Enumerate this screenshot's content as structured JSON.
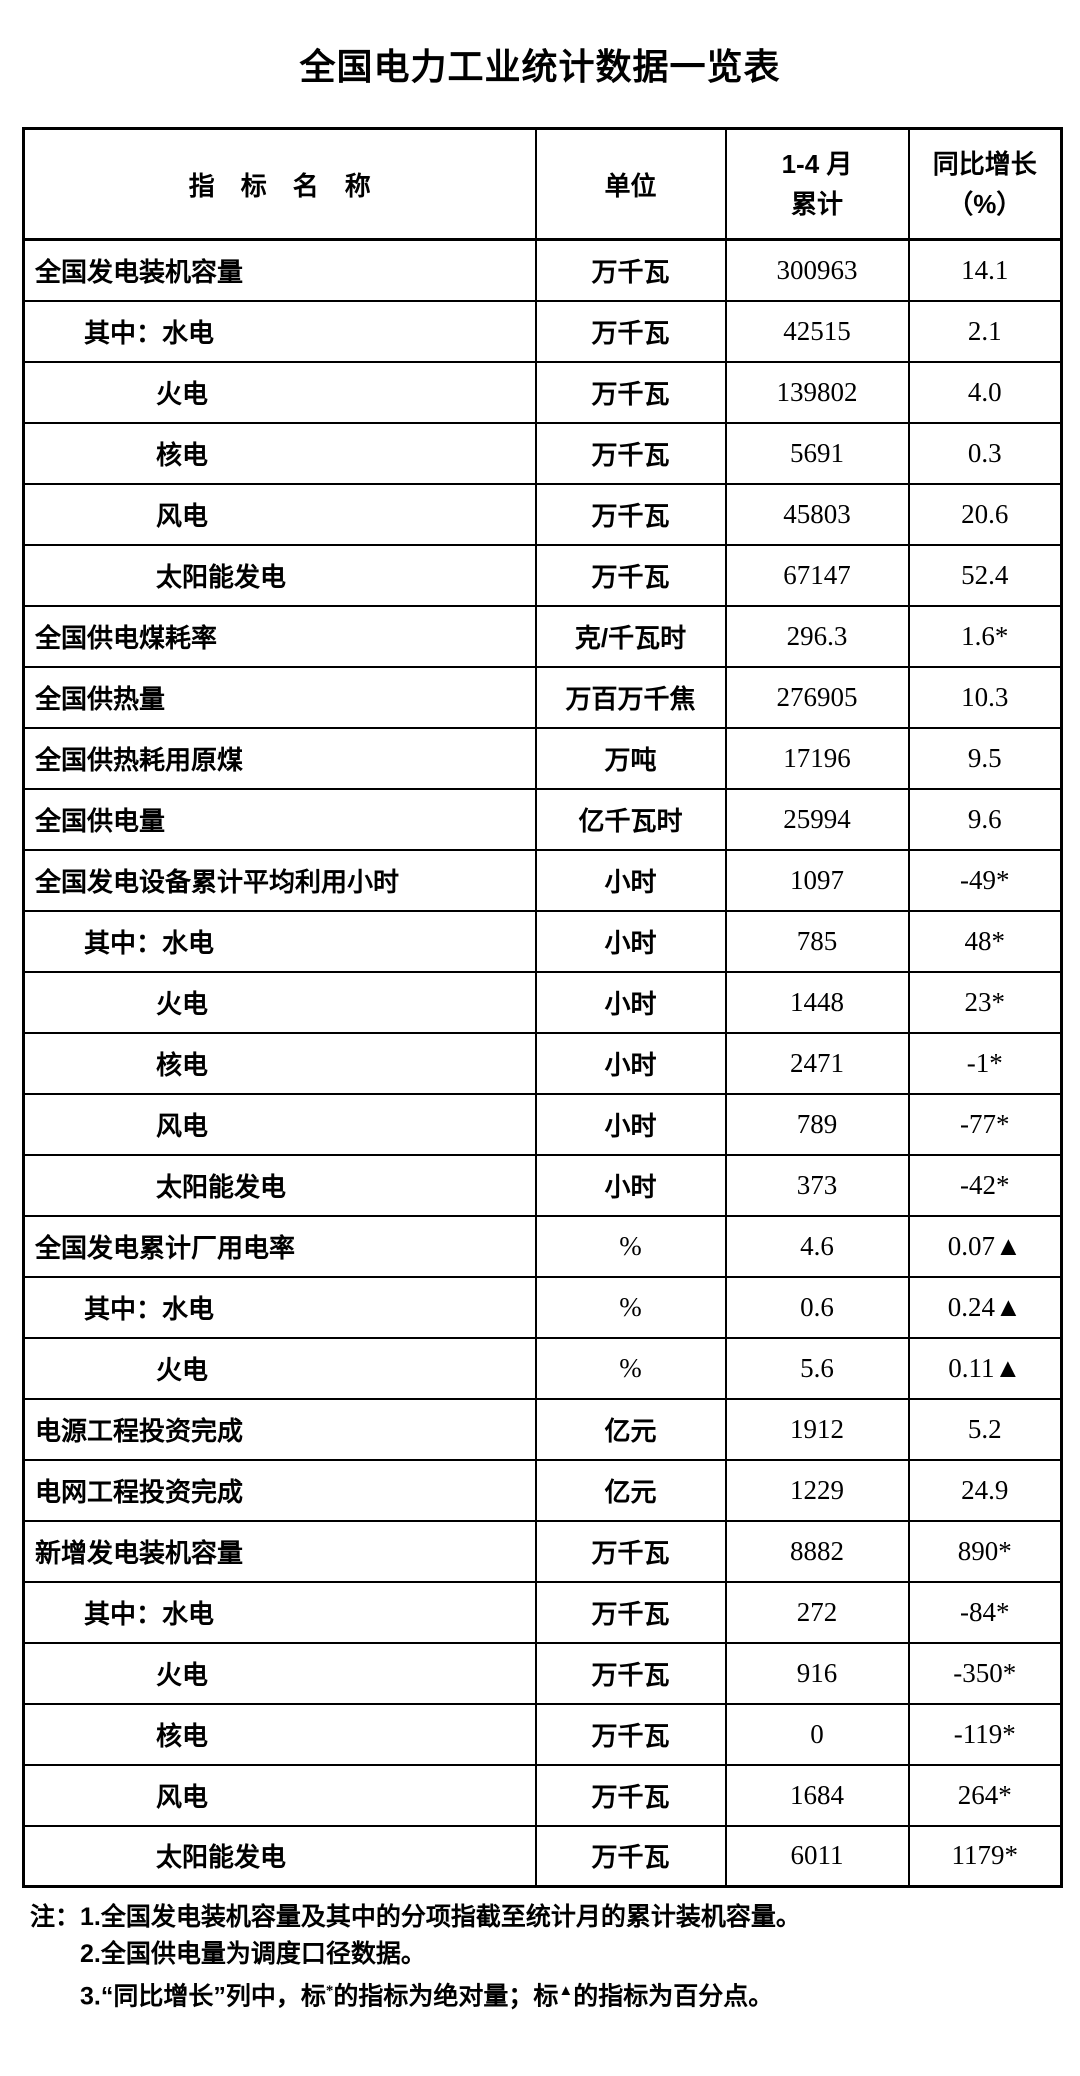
{
  "title": "全国电力工业统计数据一览表",
  "table": {
    "headers": {
      "indicator": "指　标　名　称",
      "unit": "单位",
      "period_line1": "1-4 月",
      "period_line2": "累计",
      "growth_line1": "同比增长",
      "growth_line2": "（%）"
    },
    "rows": [
      {
        "name": "全国发电装机容量",
        "indent": 0,
        "unit": "万千瓦",
        "value": "300963",
        "growth": "14.1"
      },
      {
        "name": "其中：水电",
        "indent": 1,
        "unit": "万千瓦",
        "value": "42515",
        "growth": "2.1"
      },
      {
        "name": "火电",
        "indent": 2,
        "unit": "万千瓦",
        "value": "139802",
        "growth": "4.0"
      },
      {
        "name": "核电",
        "indent": 2,
        "unit": "万千瓦",
        "value": "5691",
        "growth": "0.3"
      },
      {
        "name": "风电",
        "indent": 2,
        "unit": "万千瓦",
        "value": "45803",
        "growth": "20.6"
      },
      {
        "name": "太阳能发电",
        "indent": 2,
        "unit": "万千瓦",
        "value": "67147",
        "growth": "52.4"
      },
      {
        "name": "全国供电煤耗率",
        "indent": 0,
        "unit": "克/千瓦时",
        "value": "296.3",
        "growth": "1.6*"
      },
      {
        "name": "全国供热量",
        "indent": 0,
        "unit": "万百万千焦",
        "value": "276905",
        "growth": "10.3"
      },
      {
        "name": "全国供热耗用原煤",
        "indent": 0,
        "unit": "万吨",
        "value": "17196",
        "growth": "9.5"
      },
      {
        "name": "全国供电量",
        "indent": 0,
        "unit": "亿千瓦时",
        "value": "25994",
        "growth": "9.6"
      },
      {
        "name": "全国发电设备累计平均利用小时",
        "indent": 0,
        "unit": "小时",
        "value": "1097",
        "growth": "-49*"
      },
      {
        "name": "其中：水电",
        "indent": 1,
        "unit": "小时",
        "value": "785",
        "growth": "48*"
      },
      {
        "name": "火电",
        "indent": 2,
        "unit": "小时",
        "value": "1448",
        "growth": "23*"
      },
      {
        "name": "核电",
        "indent": 2,
        "unit": "小时",
        "value": "2471",
        "growth": "-1*"
      },
      {
        "name": "风电",
        "indent": 2,
        "unit": "小时",
        "value": "789",
        "growth": "-77*"
      },
      {
        "name": "太阳能发电",
        "indent": 2,
        "unit": "小时",
        "value": "373",
        "growth": "-42*"
      },
      {
        "name": "全国发电累计厂用电率",
        "indent": 0,
        "unit": "%",
        "value": "4.6",
        "growth": "0.07▲"
      },
      {
        "name": "其中：水电",
        "indent": 1,
        "unit": "%",
        "value": "0.6",
        "growth": "0.24▲"
      },
      {
        "name": "火电",
        "indent": 2,
        "unit": "%",
        "value": "5.6",
        "growth": "0.11▲"
      },
      {
        "name": "电源工程投资完成",
        "indent": 0,
        "unit": "亿元",
        "value": "1912",
        "growth": "5.2"
      },
      {
        "name": "电网工程投资完成",
        "indent": 0,
        "unit": "亿元",
        "value": "1229",
        "growth": "24.9"
      },
      {
        "name": "新增发电装机容量",
        "indent": 0,
        "unit": "万千瓦",
        "value": "8882",
        "growth": "890*"
      },
      {
        "name": "其中：水电",
        "indent": 1,
        "unit": "万千瓦",
        "value": "272",
        "growth": "-84*"
      },
      {
        "name": "火电",
        "indent": 2,
        "unit": "万千瓦",
        "value": "916",
        "growth": "-350*"
      },
      {
        "name": "核电",
        "indent": 2,
        "unit": "万千瓦",
        "value": "0",
        "growth": "-119*"
      },
      {
        "name": "风电",
        "indent": 2,
        "unit": "万千瓦",
        "value": "1684",
        "growth": "264*"
      },
      {
        "name": "太阳能发电",
        "indent": 2,
        "unit": "万千瓦",
        "value": "6011",
        "growth": "1179*"
      }
    ]
  },
  "notes": {
    "prefix": "注：",
    "note1": "1.全国发电装机容量及其中的分项指截至统计月的累计装机容量。",
    "note2": "2.全国供电量为调度口径数据。",
    "note3": {
      "lead": "3.“同比增长”列中，标",
      "sup_star": "*",
      "mid": "的指标为绝对量；标",
      "sup_triangle": "▲",
      "tail": "的指标为百分点。"
    }
  }
}
